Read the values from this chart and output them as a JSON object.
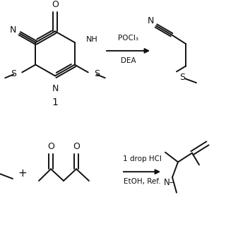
{
  "bg": "#ffffff",
  "lc": "#111111",
  "lw": 1.4,
  "fs": 7.5,
  "r1_reagent": "POCl₃",
  "r1_cond": "DEA",
  "r2_reagent": "1 drop HCl",
  "r2_cond": "EtOH, Ref.",
  "label1": "1",
  "plus": "+"
}
